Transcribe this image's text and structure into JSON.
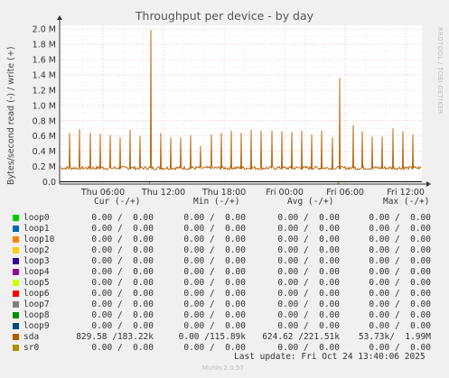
{
  "title": "Throughput per device - by day",
  "watermark": "RRDTOOL / TOBI OETIKER",
  "colors": {
    "background": "#f0f0f0",
    "plot_bg": "#ffffff",
    "grid": "#e8b8b8",
    "sda": "#b05f00",
    "axis": "#333333"
  },
  "chart_data": {
    "type": "line",
    "title": "Throughput per device - by day",
    "ylabel": "Bytes/second read (-) / write (+)",
    "y_ticks": [
      "0.0",
      "0.2 M",
      "0.4 M",
      "0.6 M",
      "0.8 M",
      "1.0 M",
      "1.2 M",
      "1.4 M",
      "1.6 M",
      "1.8 M",
      "2.0 M"
    ],
    "y_tick_values": [
      0,
      200000,
      400000,
      600000,
      800000,
      1000000,
      1200000,
      1400000,
      1600000,
      1800000,
      2000000
    ],
    "x_ticks": [
      "Thu 06:00",
      "Thu 12:00",
      "Thu 18:00",
      "Fri 00:00",
      "Fri 06:00",
      "Fri 12:00"
    ],
    "x_tick_hours": [
      6,
      12,
      18,
      24,
      30,
      36
    ],
    "xlim_hours": [
      1.7,
      37.6
    ],
    "ylim": [
      -30000,
      2050000
    ],
    "grid": true,
    "series": [
      {
        "name": "sda",
        "baseline": 180000,
        "spikes": [
          {
            "hour": 2.7,
            "value": 640000
          },
          {
            "hour": 3.7,
            "value": 690000
          },
          {
            "hour": 4.7,
            "value": 640000
          },
          {
            "hour": 5.7,
            "value": 630000
          },
          {
            "hour": 6.7,
            "value": 610000
          },
          {
            "hour": 7.7,
            "value": 580000
          },
          {
            "hour": 8.7,
            "value": 680000
          },
          {
            "hour": 9.7,
            "value": 600000
          },
          {
            "hour": 10.75,
            "value": 1990000
          },
          {
            "hour": 11.7,
            "value": 640000
          },
          {
            "hour": 12.7,
            "value": 580000
          },
          {
            "hour": 13.7,
            "value": 580000
          },
          {
            "hour": 14.7,
            "value": 610000
          },
          {
            "hour": 15.7,
            "value": 470000
          },
          {
            "hour": 16.7,
            "value": 620000
          },
          {
            "hour": 17.7,
            "value": 640000
          },
          {
            "hour": 18.7,
            "value": 670000
          },
          {
            "hour": 19.7,
            "value": 640000
          },
          {
            "hour": 20.7,
            "value": 680000
          },
          {
            "hour": 21.7,
            "value": 670000
          },
          {
            "hour": 22.7,
            "value": 670000
          },
          {
            "hour": 23.7,
            "value": 660000
          },
          {
            "hour": 24.7,
            "value": 650000
          },
          {
            "hour": 25.7,
            "value": 670000
          },
          {
            "hour": 26.7,
            "value": 620000
          },
          {
            "hour": 27.7,
            "value": 670000
          },
          {
            "hour": 28.7,
            "value": 580000
          },
          {
            "hour": 29.45,
            "value": 1360000
          },
          {
            "hour": 30.8,
            "value": 740000
          },
          {
            "hour": 31.7,
            "value": 660000
          },
          {
            "hour": 32.7,
            "value": 590000
          },
          {
            "hour": 33.7,
            "value": 590000
          },
          {
            "hour": 34.7,
            "value": 700000
          },
          {
            "hour": 35.7,
            "value": 660000
          },
          {
            "hour": 36.7,
            "value": 620000
          }
        ],
        "read_dips": [
          {
            "hour": 10.6,
            "value": -20000
          },
          {
            "hour": 29.3,
            "value": -25000
          }
        ]
      }
    ]
  },
  "legend": {
    "headers": {
      "cur": "Cur (-/+)",
      "min": "Min (-/+)",
      "avg": "Avg (-/+)",
      "max": "Max (-/+)"
    },
    "rows": [
      {
        "name": "loop0",
        "color": "#00cc00",
        "cur": "0.00 /  0.00",
        "min": "0.00 /  0.00",
        "avg": "0.00 /  0.00",
        "max": "0.00 /  0.00"
      },
      {
        "name": "loop1",
        "color": "#0066b3",
        "cur": "0.00 /  0.00",
        "min": "0.00 /  0.00",
        "avg": "0.00 /  0.00",
        "max": "0.00 /  0.00"
      },
      {
        "name": "loop10",
        "color": "#ff8000",
        "cur": "0.00 /  0.00",
        "min": "0.00 /  0.00",
        "avg": "0.00 /  0.00",
        "max": "0.00 /  0.00"
      },
      {
        "name": "loop2",
        "color": "#ffcc00",
        "cur": "0.00 /  0.00",
        "min": "0.00 /  0.00",
        "avg": "0.00 /  0.00",
        "max": "0.00 /  0.00"
      },
      {
        "name": "loop3",
        "color": "#330099",
        "cur": "0.00 /  0.00",
        "min": "0.00 /  0.00",
        "avg": "0.00 /  0.00",
        "max": "0.00 /  0.00"
      },
      {
        "name": "loop4",
        "color": "#990099",
        "cur": "0.00 /  0.00",
        "min": "0.00 /  0.00",
        "avg": "0.00 /  0.00",
        "max": "0.00 /  0.00"
      },
      {
        "name": "loop5",
        "color": "#ccff00",
        "cur": "0.00 /  0.00",
        "min": "0.00 /  0.00",
        "avg": "0.00 /  0.00",
        "max": "0.00 /  0.00"
      },
      {
        "name": "loop6",
        "color": "#ff0000",
        "cur": "0.00 /  0.00",
        "min": "0.00 /  0.00",
        "avg": "0.00 /  0.00",
        "max": "0.00 /  0.00"
      },
      {
        "name": "loop7",
        "color": "#808080",
        "cur": "0.00 /  0.00",
        "min": "0.00 /  0.00",
        "avg": "0.00 /  0.00",
        "max": "0.00 /  0.00"
      },
      {
        "name": "loop8",
        "color": "#008f00",
        "cur": "0.00 /  0.00",
        "min": "0.00 /  0.00",
        "avg": "0.00 /  0.00",
        "max": "0.00 /  0.00"
      },
      {
        "name": "loop9",
        "color": "#00487d",
        "cur": "0.00 /  0.00",
        "min": "0.00 /  0.00",
        "avg": "0.00 /  0.00",
        "max": "0.00 /  0.00"
      },
      {
        "name": "sda",
        "color": "#b35a00",
        "cur": "829.58 /183.22k",
        "min": "0.00 /115.89k",
        "avg": "624.62 /221.51k",
        "max": "53.73k/  1.99M"
      },
      {
        "name": "sr0",
        "color": "#b38f00",
        "cur": "0.00 /  0.00",
        "min": "0.00 /  0.00",
        "avg": "0.00 /  0.00",
        "max": "0.00 /  0.00"
      }
    ]
  },
  "footer": {
    "last_update": "Last update: Fri Oct 24 13:40:06 2025",
    "munin_version": "Munin 2.0.57"
  }
}
